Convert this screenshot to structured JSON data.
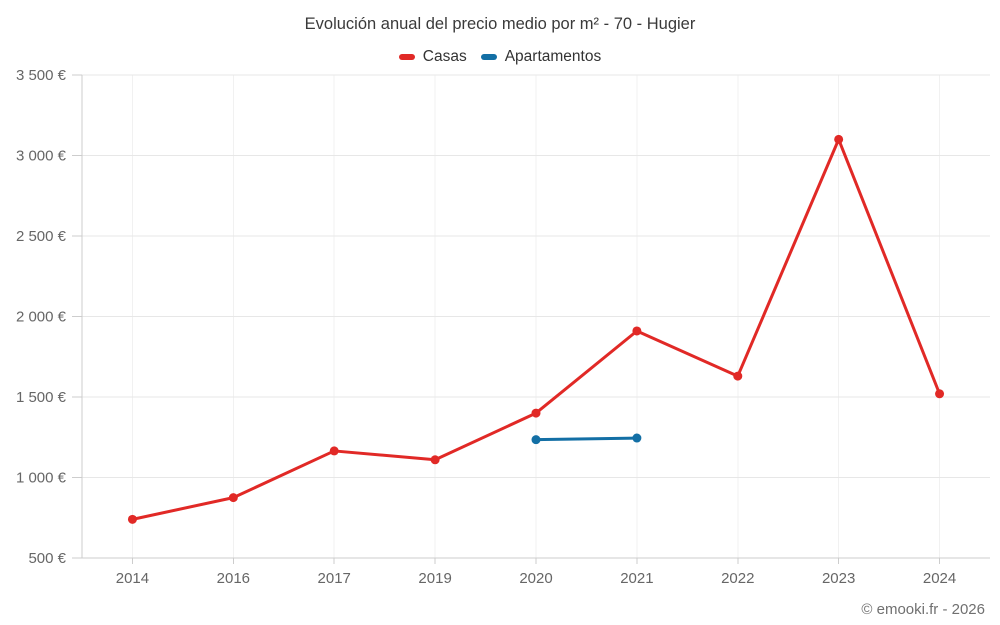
{
  "title": "Evolución anual del precio medio por m² - 70 - Hugier",
  "credits": "© emooki.fr - 2026",
  "chart_data": {
    "type": "line",
    "title": "Evolución anual del precio medio por m² - 70 - Hugier",
    "categories": [
      "2014",
      "2016",
      "2017",
      "2019",
      "2020",
      "2021",
      "2022",
      "2023",
      "2024"
    ],
    "series": [
      {
        "name": "Casas",
        "color": "#e12926",
        "values": [
          740,
          875,
          1165,
          1110,
          1400,
          1910,
          1630,
          3100,
          1520
        ]
      },
      {
        "name": "Apartamentos",
        "color": "#136fa5",
        "values": [
          null,
          null,
          null,
          null,
          1235,
          1245,
          null,
          null,
          null
        ]
      }
    ],
    "ylim": [
      500,
      3500
    ],
    "ytick_step": 500,
    "yticks": [
      500,
      1000,
      1500,
      2000,
      2500,
      3000,
      3500
    ],
    "ytick_suffix": " €",
    "thousands_separator": " ",
    "xlabel": "",
    "ylabel": "",
    "grid": true,
    "legend_position": "top",
    "colors": {
      "hgrid": "#e7e7e7",
      "vgrid": "#f1f1f1",
      "axis": "#cccccc",
      "tick": "#cdcdcd",
      "axis_label": "#666666",
      "title": "#3a3a3a",
      "legend_text": "#333333",
      "credits_text": "#707070"
    }
  }
}
